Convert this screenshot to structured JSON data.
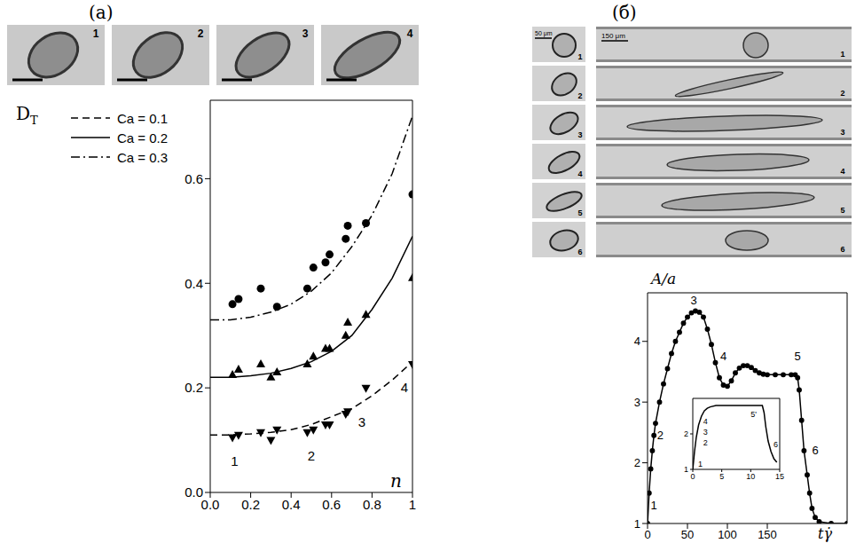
{
  "panels": [
    {
      "label": "(а)",
      "photo_labels": [
        "1",
        "2",
        "3",
        "4"
      ]
    },
    {
      "label": "(б)",
      "photo_labels_left": [
        "1",
        "2",
        "3",
        "4",
        "5",
        "6"
      ],
      "photo_labels_right": [
        "1",
        "2",
        "3",
        "4",
        "5",
        "6"
      ],
      "scale_bars": [
        "50 μm",
        "150 μm"
      ]
    }
  ],
  "chart_data": [
    {
      "type": "line",
      "y_label": "DT",
      "x_label": "n",
      "xlim": [
        0,
        1
      ],
      "xticks": [
        {
          "value": 0,
          "label": "0.0"
        },
        0.2,
        0.4,
        0.6,
        0.8,
        1
      ],
      "ylim": [
        0,
        0.75
      ],
      "yticks": [
        {
          "value": 0,
          "label": "0.0"
        },
        0.2,
        0.4,
        0.6
      ],
      "grid": false,
      "legend": "upper left",
      "series": [
        {
          "name": "Ca = 0.1",
          "color": "#000000",
          "line_style": "dashed",
          "marker": "triangle-down",
          "x": [
            0,
            0.1,
            0.2,
            0.3,
            0.4,
            0.5,
            0.6,
            0.7,
            0.8,
            0.9,
            1
          ],
          "values": [
            0.11,
            0.11,
            0.112,
            0.115,
            0.12,
            0.13,
            0.145,
            0.16,
            0.185,
            0.215,
            0.25
          ],
          "points": {
            "x": [
              0.11,
              0.14,
              0.25,
              0.3,
              0.33,
              0.48,
              0.51,
              0.57,
              0.59,
              0.67,
              0.68,
              0.77,
              1.0
            ],
            "values": [
              0.105,
              0.11,
              0.115,
              0.1,
              0.12,
              0.115,
              0.12,
              0.13,
              0.13,
              0.15,
              0.155,
              0.2,
              0.245
            ]
          }
        },
        {
          "name": "Ca = 0.2",
          "color": "#000000",
          "line_style": "solid",
          "marker": "triangle-up",
          "x": [
            0,
            0.1,
            0.2,
            0.3,
            0.4,
            0.5,
            0.6,
            0.7,
            0.8,
            0.9,
            1
          ],
          "values": [
            0.22,
            0.22,
            0.223,
            0.228,
            0.237,
            0.25,
            0.27,
            0.3,
            0.35,
            0.41,
            0.49
          ],
          "points": {
            "x": [
              0.11,
              0.14,
              0.25,
              0.3,
              0.33,
              0.48,
              0.51,
              0.57,
              0.59,
              0.67,
              0.68,
              0.77,
              1.0
            ],
            "values": [
              0.225,
              0.235,
              0.245,
              0.22,
              0.23,
              0.245,
              0.26,
              0.275,
              0.275,
              0.3,
              0.325,
              0.34,
              0.41
            ]
          }
        },
        {
          "name": "Ca = 0.3",
          "color": "#000000",
          "line_style": "dashdot",
          "marker": "circle",
          "x": [
            0,
            0.1,
            0.2,
            0.3,
            0.4,
            0.5,
            0.6,
            0.7,
            0.8,
            0.9,
            1
          ],
          "values": [
            0.33,
            0.33,
            0.335,
            0.345,
            0.36,
            0.385,
            0.42,
            0.47,
            0.53,
            0.61,
            0.72
          ],
          "points": {
            "x": [
              0.11,
              0.14,
              0.25,
              0.33,
              0.48,
              0.51,
              0.57,
              0.59,
              0.67,
              0.68,
              0.77,
              1.0
            ],
            "values": [
              0.36,
              0.37,
              0.39,
              0.355,
              0.39,
              0.43,
              0.44,
              0.455,
              0.485,
              0.51,
              0.515,
              0.57
            ]
          }
        }
      ],
      "annotations": [
        {
          "text": "1",
          "x": 0.12,
          "y": 0.06
        },
        {
          "text": "2",
          "x": 0.5,
          "y": 0.07
        },
        {
          "text": "3",
          "x": 0.75,
          "y": 0.135
        },
        {
          "text": "4",
          "x": 0.96,
          "y": 0.2
        }
      ]
    },
    {
      "type": "line",
      "y_label": "A/a",
      "x_label": "tγ̇",
      "xlim": [
        0,
        250
      ],
      "xticks": [
        0,
        50,
        100,
        150
      ],
      "ylim": [
        1,
        4.8
      ],
      "yticks": [
        1,
        2,
        3,
        4
      ],
      "grid": false,
      "series": [
        {
          "color": "#000000",
          "marker": "circle",
          "line_style": "solid",
          "x": [
            0,
            2,
            4,
            6,
            8,
            10,
            15,
            20,
            25,
            30,
            35,
            40,
            45,
            50,
            55,
            60,
            65,
            70,
            75,
            80,
            85,
            90,
            95,
            100,
            105,
            110,
            115,
            120,
            125,
            130,
            135,
            140,
            145,
            150,
            160,
            170,
            180,
            185,
            188,
            190,
            193,
            196,
            200,
            203,
            206,
            210,
            215,
            230,
            250
          ],
          "values": [
            1.0,
            1.5,
            1.9,
            2.2,
            2.45,
            2.65,
            3.0,
            3.3,
            3.55,
            3.8,
            4.0,
            4.15,
            4.3,
            4.4,
            4.47,
            4.5,
            4.48,
            4.4,
            4.2,
            3.95,
            3.65,
            3.4,
            3.28,
            3.26,
            3.35,
            3.48,
            3.56,
            3.6,
            3.6,
            3.57,
            3.52,
            3.48,
            3.46,
            3.45,
            3.45,
            3.45,
            3.45,
            3.45,
            3.4,
            3.2,
            2.7,
            2.2,
            1.8,
            1.5,
            1.25,
            1.1,
            1.03,
            1.0,
            1.0
          ]
        }
      ],
      "annotations": [
        {
          "text": "1",
          "x": 8,
          "y": 1.3
        },
        {
          "text": "2",
          "x": 16,
          "y": 2.45
        },
        {
          "text": "3",
          "x": 58,
          "y": 4.68
        },
        {
          "text": "4",
          "x": 95,
          "y": 3.75
        },
        {
          "text": "5",
          "x": 188,
          "y": 3.75
        },
        {
          "text": "6",
          "x": 210,
          "y": 2.2
        }
      ]
    },
    {
      "type": "line",
      "xlim": [
        0,
        15
      ],
      "xticks": [
        0,
        5,
        10,
        15
      ],
      "ylim": [
        1,
        3
      ],
      "yticks": [
        1,
        2
      ],
      "grid": false,
      "series": [
        {
          "color": "#000000",
          "line_style": "solid",
          "x": [
            0,
            0.3,
            0.6,
            1,
            1.5,
            2,
            2.5,
            3,
            4,
            6,
            8,
            10,
            12,
            12.3,
            12.6,
            13,
            13.5,
            14,
            14.5
          ],
          "values": [
            1.0,
            1.5,
            1.9,
            2.25,
            2.5,
            2.65,
            2.72,
            2.76,
            2.8,
            2.8,
            2.8,
            2.8,
            2.8,
            2.6,
            2.2,
            1.8,
            1.5,
            1.3,
            1.2
          ]
        }
      ],
      "annotations": [
        {
          "text": "1",
          "x": 1.3,
          "y": 1.15
        },
        {
          "text": "2",
          "x": 2.2,
          "y": 1.75
        },
        {
          "text": "3",
          "x": 2.2,
          "y": 2.05
        },
        {
          "text": "4",
          "x": 2.2,
          "y": 2.35
        },
        {
          "text": "5'",
          "x": 10.5,
          "y": 2.55
        },
        {
          "text": "6",
          "x": 14.3,
          "y": 1.7
        }
      ]
    }
  ]
}
